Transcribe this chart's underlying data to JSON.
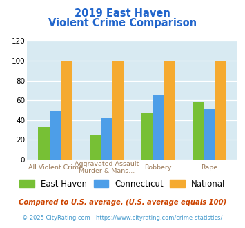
{
  "title_line1": "2019 East Haven",
  "title_line2": "Violent Crime Comparison",
  "series": {
    "East Haven": [
      33,
      25,
      47,
      58
    ],
    "Connecticut": [
      49,
      42,
      66,
      51
    ],
    "National": [
      100,
      100,
      100,
      100
    ]
  },
  "colors": {
    "East Haven": "#77c035",
    "Connecticut": "#4d9ee8",
    "National": "#f5aa30"
  },
  "ylim": [
    0,
    120
  ],
  "yticks": [
    0,
    20,
    40,
    60,
    80,
    100,
    120
  ],
  "xlabel_groups": [
    [
      "All Violent Crime",
      ""
    ],
    [
      "Aggravated Assault",
      "Murder & Mans..."
    ],
    [
      "Robbery",
      ""
    ],
    [
      "Rape",
      ""
    ]
  ],
  "footnote1": "Compared to U.S. average. (U.S. average equals 100)",
  "footnote2": "© 2025 CityRating.com - https://www.cityrating.com/crime-statistics/",
  "title_color": "#2266cc",
  "footnote1_color": "#cc4400",
  "footnote2_color": "#4499cc",
  "bg_color": "#d8eaf2",
  "bar_width": 0.22
}
